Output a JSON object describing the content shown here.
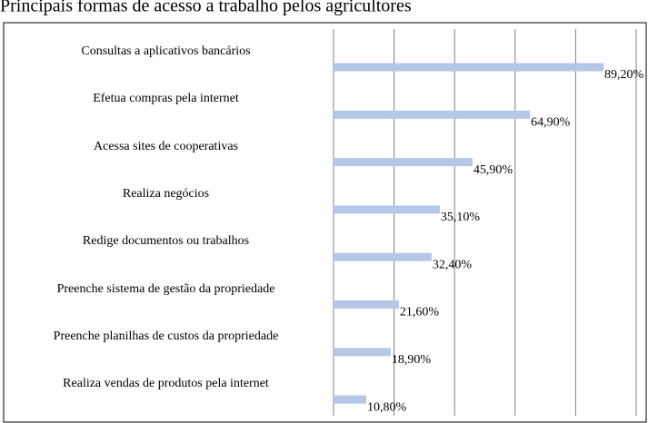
{
  "chart_data": {
    "type": "bar",
    "orientation": "horizontal",
    "title": "Principais formas de acesso a trabalho pelos agricultores",
    "categories": [
      "Consultas a aplicativos bancários",
      "Efetua compras pela internet",
      "Acessa sites de cooperativas",
      "Realiza negócios",
      "Redige documentos ou trabalhos",
      "Preenche sistema de gestão da propriedade",
      "Preenche planilhas de custos da propriedade",
      "Realiza vendas de produtos pela internet"
    ],
    "values": [
      89.2,
      64.9,
      45.9,
      35.1,
      32.4,
      21.6,
      18.9,
      10.8
    ],
    "value_labels": [
      "89,20%",
      "64,90%",
      "45,90%",
      "35,10%",
      "32,40%",
      "21,60%",
      "18,90%",
      "10,80%"
    ],
    "color": "#b4c7e7",
    "xlim": [
      0,
      100
    ],
    "xticks": [
      0,
      20,
      40,
      60,
      80,
      100
    ],
    "grid": true
  }
}
